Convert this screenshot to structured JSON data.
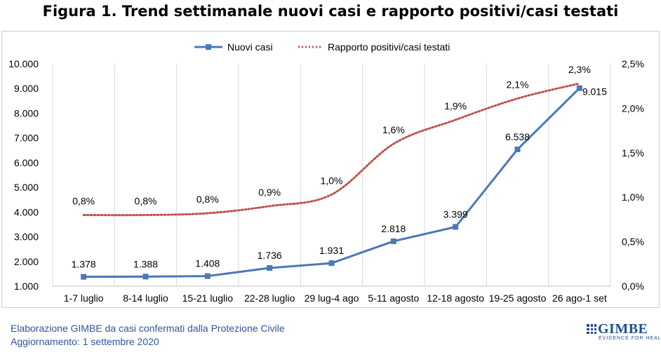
{
  "header": {
    "title": "Figura 1. Trend settimanale nuovi casi e rapporto positivi/casi testati"
  },
  "footer": {
    "line1": "Elaborazione GIMBE da casi confermati dalla Protezione Civile",
    "line2": "Aggiornamento: 1 settembre 2020"
  },
  "logo": {
    "name": "GIMBE",
    "tagline": "EVIDENCE FOR HEALTH"
  },
  "colors": {
    "nuovi_casi": "#4a78b8",
    "rapporto": "#c0504d",
    "grid": "#d9d9d9",
    "text": "#000000",
    "footer": "#2f5597"
  },
  "chart_data": {
    "type": "line",
    "categories": [
      "1-7 luglio",
      "8-14 luglio",
      "15-21 luglio",
      "22-28 luglio",
      "29 lug-4 ago",
      "5-11 agosto",
      "12-18 agosto",
      "19-25 agosto",
      "26 ago-1 set"
    ],
    "series": [
      {
        "name": "Nuovi casi",
        "axis": "left",
        "style": "solid-square-markers",
        "values": [
          1378,
          1388,
          1408,
          1736,
          1931,
          2818,
          3399,
          6538,
          9015
        ],
        "labels": [
          "1.378",
          "1.388",
          "1.408",
          "1.736",
          "1.931",
          "2.818",
          "3.399",
          "6.538",
          "9.015"
        ]
      },
      {
        "name": "Rapporto positivi/casi testati",
        "axis": "right",
        "style": "dotted",
        "values": [
          0.008,
          0.008,
          0.0082,
          0.009,
          0.0103,
          0.016,
          0.0187,
          0.0211,
          0.0228
        ],
        "labels": [
          "0,8%",
          "0,8%",
          "0,8%",
          "0,9%",
          "1,0%",
          "1,6%",
          "1,9%",
          "2,1%",
          "2,3%"
        ]
      }
    ],
    "left_axis": {
      "ylim": [
        1000,
        10000
      ],
      "ticks": [
        1000,
        2000,
        3000,
        4000,
        5000,
        6000,
        7000,
        8000,
        9000,
        10000
      ],
      "tick_labels": [
        "1.000",
        "2.000",
        "3.000",
        "4.000",
        "5.000",
        "6.000",
        "7.000",
        "8.000",
        "9.000",
        "10.000"
      ]
    },
    "right_axis": {
      "ylim": [
        0,
        0.025
      ],
      "ticks": [
        0,
        0.005,
        0.01,
        0.015,
        0.02,
        0.025
      ],
      "tick_labels": [
        "0,0%",
        "0,5%",
        "1,0%",
        "1,5%",
        "2,0%",
        "2,5%"
      ]
    },
    "grid": "vertical",
    "legend_position": "top-center"
  }
}
